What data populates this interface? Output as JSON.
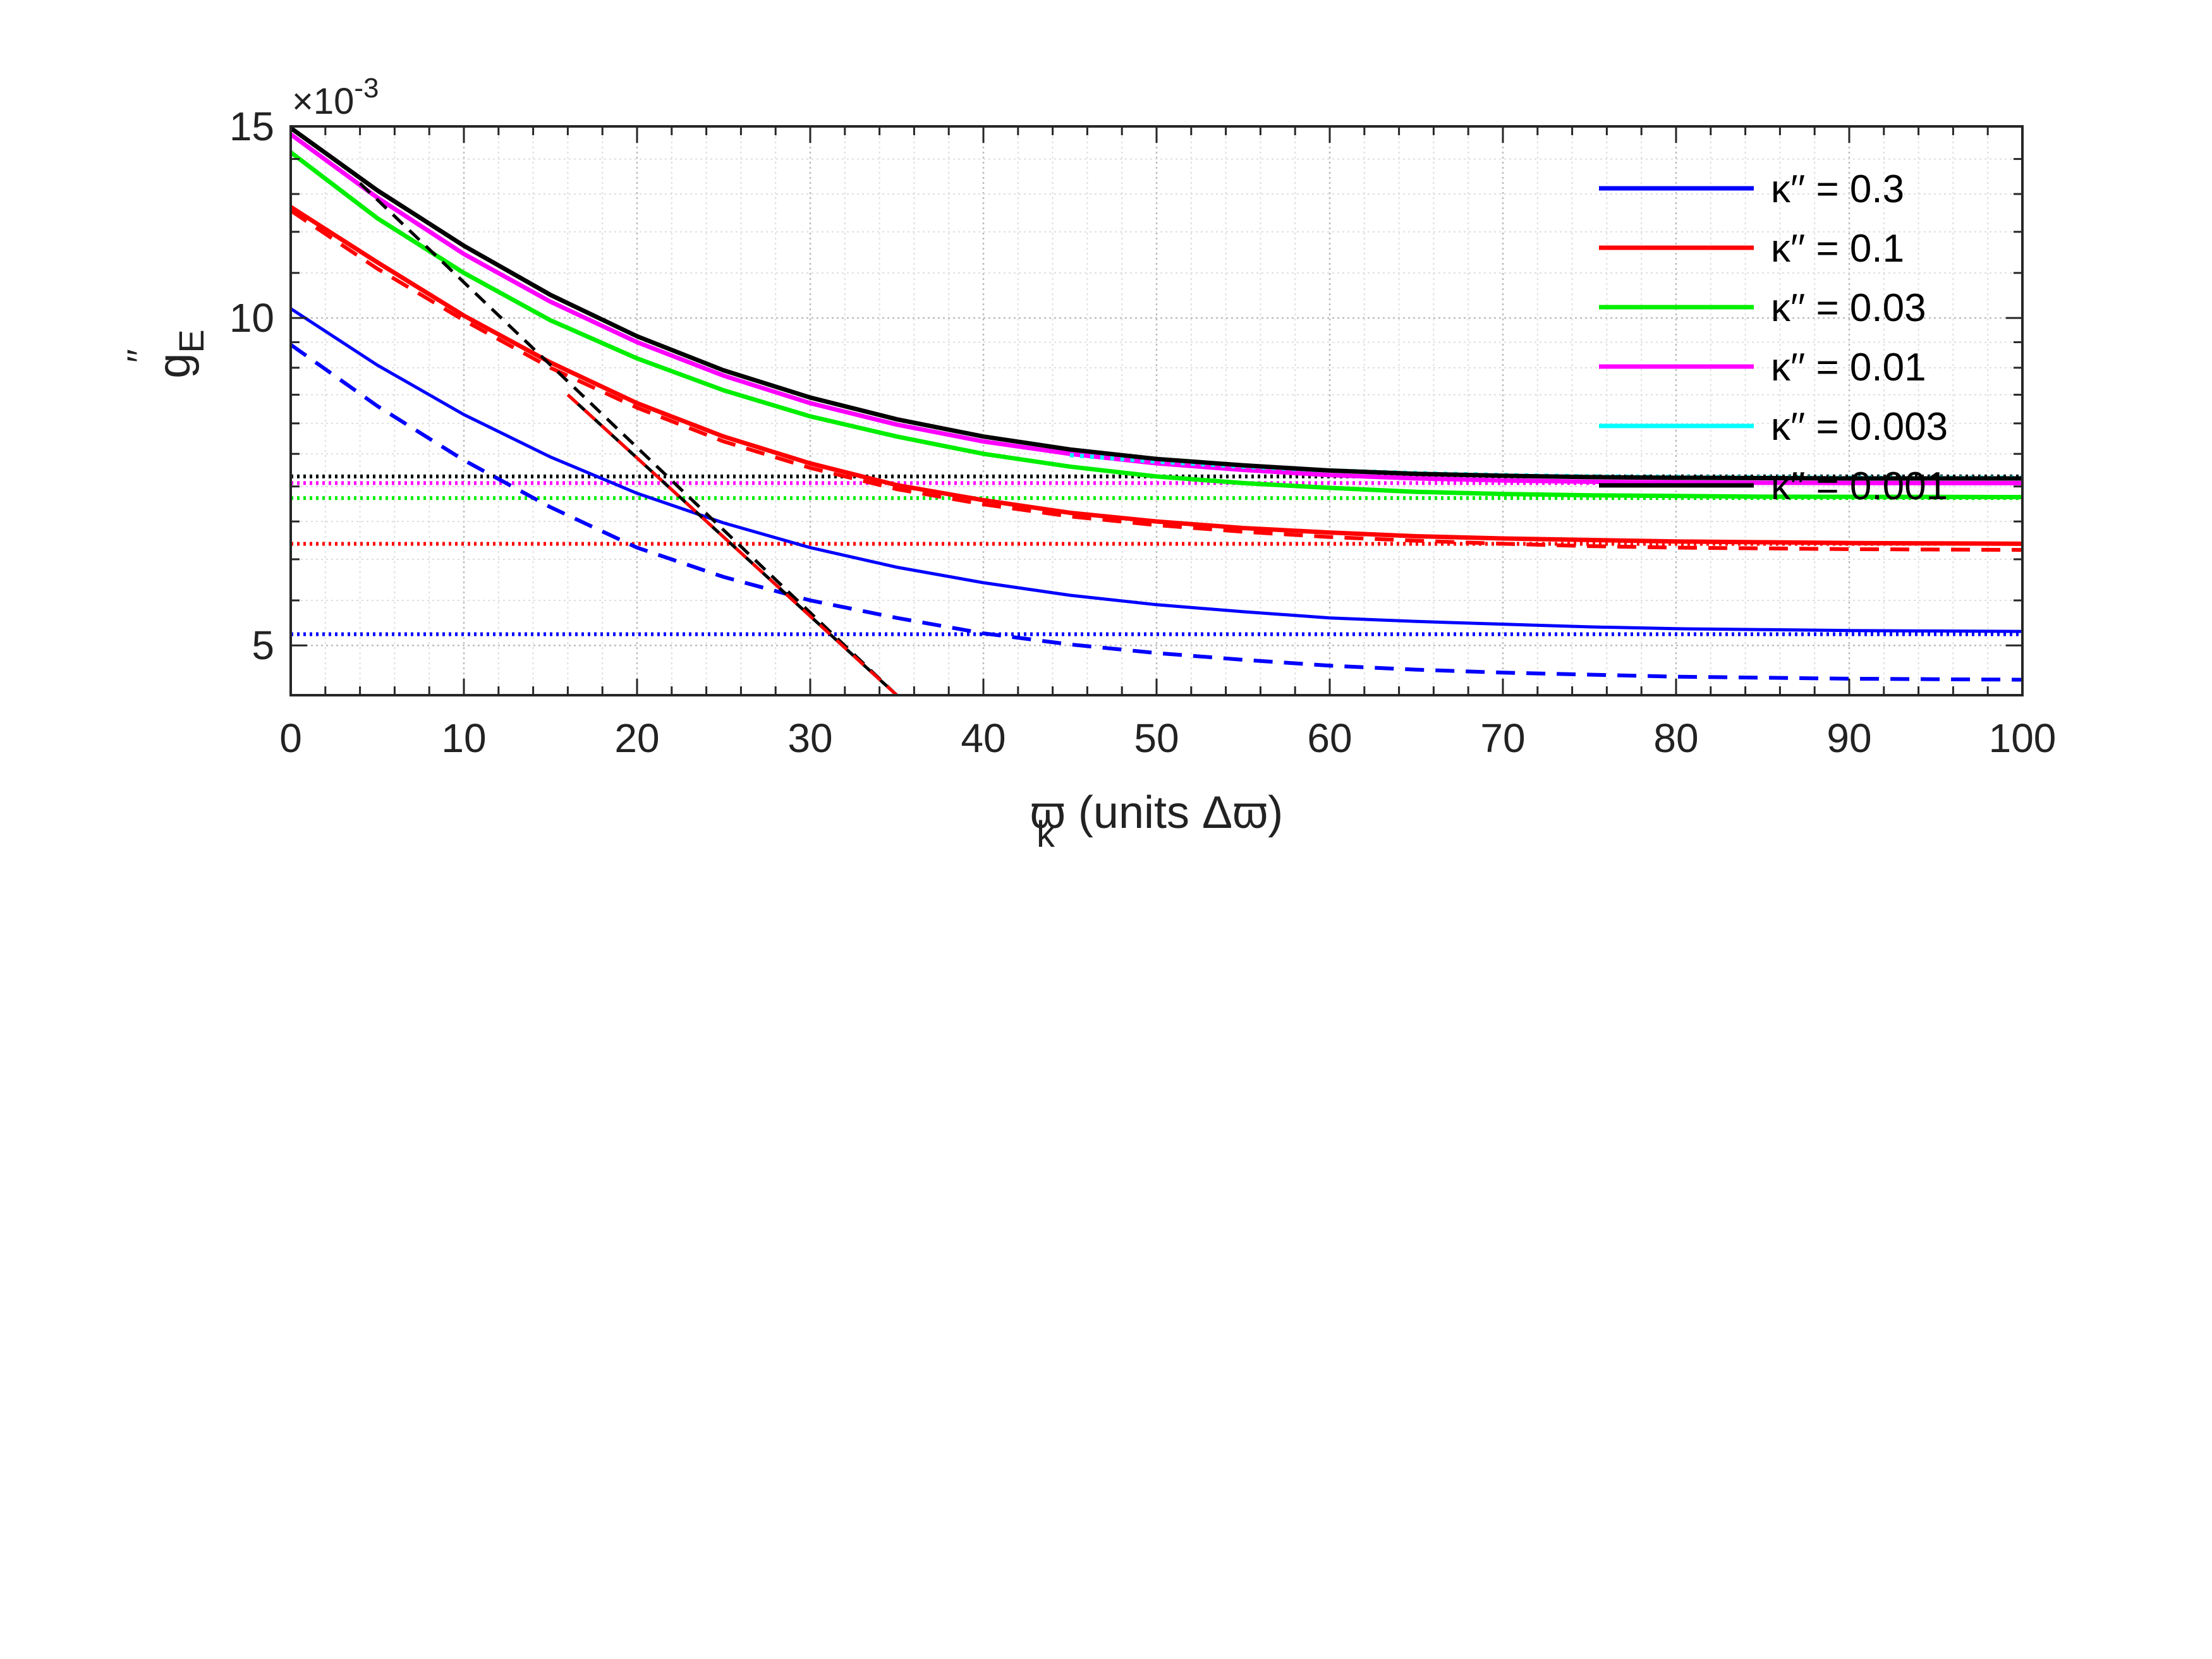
{
  "chart_data": {
    "type": "line",
    "title": "",
    "xlabel": "ϖ (units Δϖ)",
    "xlabel_sub": "k",
    "ylabel": "g",
    "ylabel_sub": "E",
    "ylabel_prime": "′′",
    "y_exponent": "×10",
    "y_exponent_power": "-3",
    "xlim": [
      0,
      100
    ],
    "ylim": [
      4.5,
      15
    ],
    "yscale": "log",
    "x_ticks": [
      0,
      10,
      20,
      30,
      40,
      50,
      60,
      70,
      80,
      90,
      100
    ],
    "x_tick_labels": [
      "0",
      "10",
      "20",
      "30",
      "40",
      "50",
      "60",
      "70",
      "80",
      "90",
      "100"
    ],
    "y_ticks": [
      5,
      10,
      15
    ],
    "y_tick_labels": [
      "5",
      "10",
      "15"
    ],
    "grid": "on (major and minor, dotted)",
    "legend_position": "top-right",
    "series": [
      {
        "name": "κ′′ = 0.3",
        "color": "#0000ff",
        "x": [
          0,
          5,
          10,
          15,
          20,
          25,
          30,
          35,
          40,
          45,
          50,
          55,
          60,
          65,
          70,
          75,
          80,
          85,
          90,
          95,
          100
        ],
        "y": [
          10.2,
          9.05,
          8.15,
          7.45,
          6.9,
          6.48,
          6.15,
          5.9,
          5.71,
          5.56,
          5.45,
          5.37,
          5.3,
          5.26,
          5.23,
          5.2,
          5.18,
          5.17,
          5.16,
          5.155,
          5.15
        ],
        "asymptote": 5.12,
        "dashed_y": [
          9.45,
          8.3,
          7.4,
          6.7,
          6.15,
          5.78,
          5.5,
          5.3,
          5.13,
          5.01,
          4.92,
          4.85,
          4.79,
          4.75,
          4.72,
          4.7,
          4.68,
          4.67,
          4.66,
          4.655,
          4.65
        ]
      },
      {
        "name": "κ′′ = 0.1",
        "color": "#ff0000",
        "x": [
          0,
          5,
          10,
          15,
          20,
          25,
          30,
          35,
          40,
          45,
          50,
          55,
          60,
          65,
          70,
          75,
          80,
          85,
          90,
          95,
          100
        ],
        "y": [
          12.65,
          11.25,
          10.05,
          9.1,
          8.35,
          7.78,
          7.35,
          7.02,
          6.8,
          6.62,
          6.5,
          6.41,
          6.35,
          6.3,
          6.27,
          6.25,
          6.23,
          6.22,
          6.21,
          6.205,
          6.2
        ],
        "asymptote": 6.2,
        "dashed_y": [
          12.55,
          11.1,
          9.95,
          9.0,
          8.27,
          7.7,
          7.28,
          6.96,
          6.74,
          6.57,
          6.45,
          6.36,
          6.29,
          6.24,
          6.2,
          6.17,
          6.15,
          6.14,
          6.13,
          6.125,
          6.12
        ]
      },
      {
        "name": "κ′′ = 0.03",
        "color": "#00ee00",
        "x": [
          0,
          5,
          10,
          15,
          20,
          25,
          30,
          35,
          40,
          45,
          50,
          55,
          60,
          65,
          70,
          75,
          80,
          85,
          90,
          95,
          100
        ],
        "y": [
          14.2,
          12.35,
          11.0,
          9.95,
          9.18,
          8.58,
          8.12,
          7.78,
          7.5,
          7.3,
          7.15,
          7.05,
          6.98,
          6.92,
          6.89,
          6.87,
          6.86,
          6.85,
          6.848,
          6.846,
          6.845
        ],
        "asymptote": 6.83
      },
      {
        "name": "κ′′ = 0.01",
        "color": "#ff00ff",
        "x": [
          0,
          5,
          10,
          15,
          20,
          25,
          30,
          35,
          40,
          45,
          50,
          55,
          60,
          65,
          70,
          75,
          80,
          85,
          90,
          95,
          100
        ],
        "y": [
          14.75,
          12.9,
          11.45,
          10.35,
          9.5,
          8.85,
          8.35,
          7.98,
          7.7,
          7.5,
          7.35,
          7.25,
          7.17,
          7.12,
          7.09,
          7.07,
          7.06,
          7.055,
          7.052,
          7.05,
          7.05
        ],
        "asymptote": 7.05
      },
      {
        "name": "κ′′ = 0.003",
        "color": "#00ffff",
        "x": [
          45,
          50,
          55,
          60,
          65,
          70,
          75,
          80,
          85,
          90,
          95,
          100
        ],
        "y": [
          7.48,
          7.38,
          7.3,
          7.24,
          7.2,
          7.17,
          7.15,
          7.14,
          7.135,
          7.13,
          7.13,
          7.13
        ],
        "asymptote": 7.15
      },
      {
        "name": "κ′′ = 0.001",
        "color": "#000000",
        "x": [
          0,
          5,
          10,
          15,
          20,
          25,
          30,
          35,
          40,
          45,
          50,
          55,
          60,
          65,
          70,
          75,
          80,
          85,
          90,
          95,
          100
        ],
        "y": [
          14.95,
          13.1,
          11.65,
          10.5,
          9.62,
          8.95,
          8.45,
          8.07,
          7.78,
          7.57,
          7.42,
          7.32,
          7.24,
          7.19,
          7.16,
          7.14,
          7.13,
          7.125,
          7.12,
          7.12,
          7.12
        ],
        "asymptote": 7.15
      }
    ],
    "reference_lines": [
      {
        "style": "dashed",
        "color": "#000000",
        "x": [
          4,
          35
        ],
        "y": [
          13.3,
          4.5
        ]
      },
      {
        "style": "solid",
        "color": "#000000",
        "x": [
          16,
          35
        ],
        "y": [
          8.5,
          4.5
        ]
      },
      {
        "style": "dashed",
        "color": "#ff0000",
        "x": [
          16,
          35
        ],
        "y": [
          8.5,
          4.5
        ]
      }
    ]
  }
}
